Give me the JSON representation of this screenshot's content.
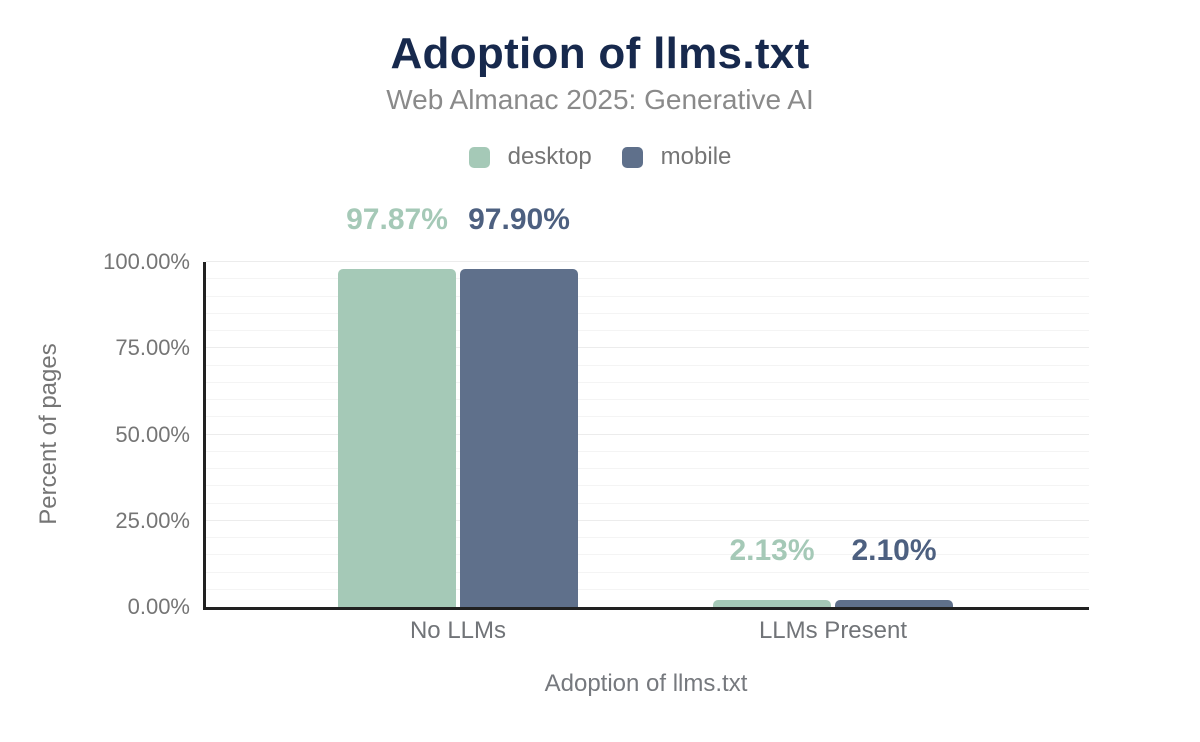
{
  "chart_data": {
    "type": "bar",
    "title": "Adoption of llms.txt",
    "subtitle": "Web Almanac 2025: Generative AI",
    "categories": [
      "No LLMs",
      "LLMs Present"
    ],
    "series": [
      {
        "name": "desktop",
        "values": [
          97.87,
          2.13
        ],
        "value_labels": [
          "97.87%",
          "2.13%"
        ],
        "color": "#a5c9b7",
        "label_color": "#a5c9b7"
      },
      {
        "name": "mobile",
        "values": [
          97.9,
          2.1
        ],
        "value_labels": [
          "97.90%",
          "2.10%"
        ],
        "color": "#5f708b",
        "label_color": "#4d6080"
      }
    ],
    "xlabel": "Adoption of llms.txt",
    "ylabel": "Percent of pages",
    "ylim": [
      0,
      100
    ],
    "yticks": [
      {
        "value": 0,
        "label": "0.00%"
      },
      {
        "value": 25,
        "label": "25.00%"
      },
      {
        "value": 50,
        "label": "50.00%"
      },
      {
        "value": 75,
        "label": "75.00%"
      },
      {
        "value": 100,
        "label": "100.00%"
      }
    ],
    "grid": {
      "orientation": "horizontal",
      "minor_step": 5,
      "major_step": 25
    },
    "legend_position": "top"
  },
  "colors": {
    "background": "#ffffff",
    "title_text": "#17294d",
    "subtitle_text": "#8a8a8a",
    "axis_tick_text": "#757575",
    "category_text": "#717478",
    "axis_line": "#212121",
    "grid_minor": "#f4f4f4",
    "grid_major": "#ececec",
    "desktop_series": "#a5c9b7",
    "mobile_series": "#5f708b",
    "mobile_value_label": "#4d6080"
  }
}
